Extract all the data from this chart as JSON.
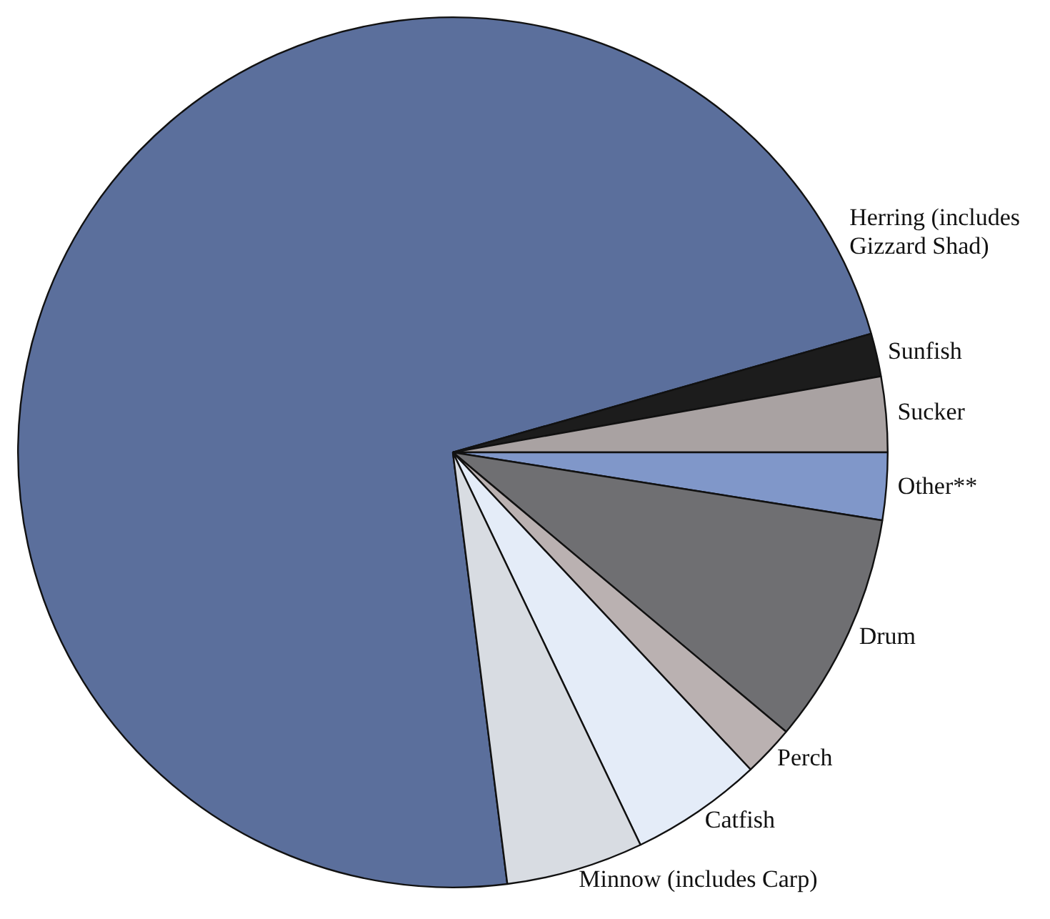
{
  "chart_data": {
    "type": "pie",
    "categories": [
      "Herring (includes Gizzard Shad)",
      "Sunfish",
      "Sucker",
      "Other**",
      "Drum",
      "Perch",
      "Catfish",
      "Minnow (includes Carp)"
    ],
    "values": [
      72.6,
      1.6,
      2.8,
      2.5,
      8.6,
      1.9,
      4.9,
      5.1
    ],
    "colors": [
      "#5b6f9c",
      "#1c1c1c",
      "#a9a2a2",
      "#8097c9",
      "#6f6f72",
      "#bab1b1",
      "#e4ecf8",
      "#d8dce2"
    ],
    "legend": false
  }
}
